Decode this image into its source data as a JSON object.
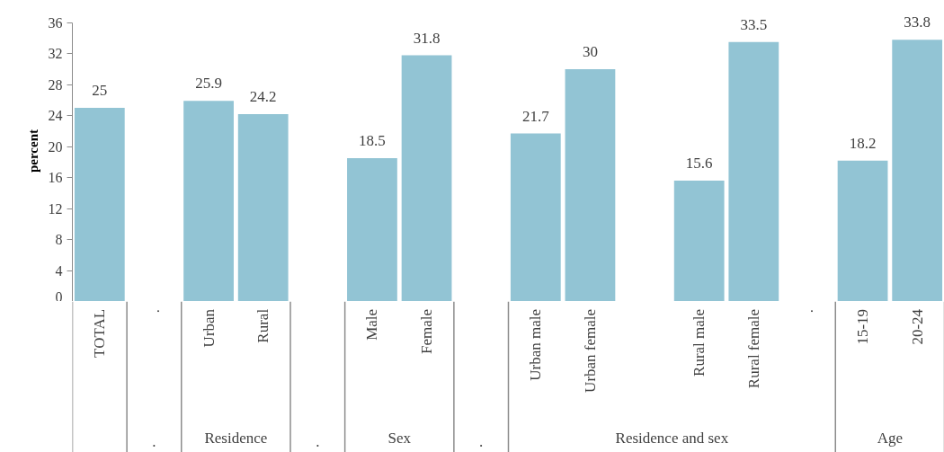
{
  "chart_data": {
    "type": "bar",
    "ylabel": "percent",
    "categories": [
      "TOTAL",
      ".",
      "Urban",
      "Rural",
      null,
      "Male",
      "Female",
      null,
      "Urban male",
      "Urban female",
      null,
      "Rural male",
      "Rural female",
      ".",
      "15-19",
      "20-24"
    ],
    "values": [
      25,
      null,
      25.9,
      24.2,
      null,
      18.5,
      31.8,
      null,
      21.7,
      30,
      null,
      15.6,
      33.5,
      null,
      18.2,
      33.8
    ],
    "color": "#92c4d4",
    "ylim": [
      0,
      36
    ],
    "yticks": [
      0,
      4,
      8,
      12,
      16,
      20,
      24,
      28,
      32,
      36
    ],
    "data_labels": true,
    "annotations": [
      ".",
      "Residence",
      ".",
      "Sex",
      ".",
      "Residence and sex",
      "Age"
    ]
  }
}
